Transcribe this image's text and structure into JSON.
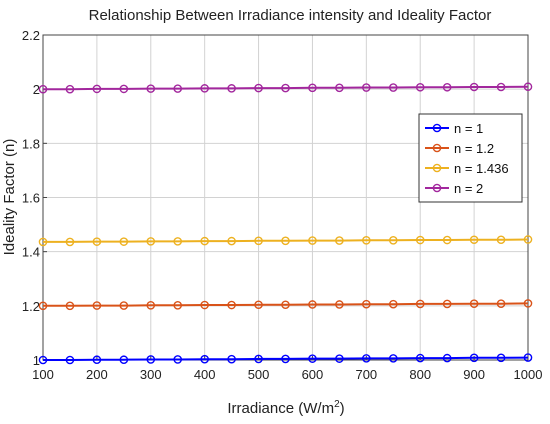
{
  "chart_data": {
    "type": "line",
    "title": "Relationship Between Irradiance intensity and Ideality Factor",
    "xlabel": "Irradiance (W/m",
    "xlabel_sup": "2",
    "xlabel_close": ")",
    "ylabel": "Ideality Factor (n)",
    "xlim": [
      100,
      1000
    ],
    "ylim": [
      1.0,
      2.2
    ],
    "grid": true,
    "legend_position": "right",
    "x_ticks": [
      "100",
      "200",
      "300",
      "400",
      "500",
      "600",
      "700",
      "800",
      "900",
      "1000"
    ],
    "y_ticks": [
      "1",
      "1.2",
      "1.4",
      "1.6",
      "1.8",
      "2",
      "2.2"
    ],
    "x": [
      100,
      150,
      200,
      250,
      300,
      350,
      400,
      450,
      500,
      550,
      600,
      650,
      700,
      750,
      800,
      850,
      900,
      950,
      1000
    ],
    "series": [
      {
        "name": "n = 1",
        "color": "#0000ff",
        "values": [
          1.0,
          1.0,
          1.001,
          1.001,
          1.002,
          1.002,
          1.003,
          1.003,
          1.004,
          1.004,
          1.005,
          1.005,
          1.006,
          1.006,
          1.007,
          1.007,
          1.008,
          1.008,
          1.009
        ]
      },
      {
        "name": "n = 1.2",
        "color": "#d95319",
        "values": [
          1.2,
          1.2,
          1.201,
          1.201,
          1.202,
          1.202,
          1.203,
          1.203,
          1.204,
          1.204,
          1.205,
          1.205,
          1.206,
          1.206,
          1.207,
          1.207,
          1.208,
          1.208,
          1.209
        ]
      },
      {
        "name": "n = 1.436",
        "color": "#edb120",
        "values": [
          1.436,
          1.436,
          1.437,
          1.437,
          1.438,
          1.438,
          1.439,
          1.439,
          1.44,
          1.44,
          1.441,
          1.441,
          1.442,
          1.442,
          1.443,
          1.443,
          1.444,
          1.444,
          1.445
        ]
      },
      {
        "name": "n = 2",
        "color": "#a2279d",
        "values": [
          2.0,
          2.0,
          2.001,
          2.001,
          2.002,
          2.002,
          2.003,
          2.003,
          2.004,
          2.004,
          2.005,
          2.005,
          2.006,
          2.006,
          2.007,
          2.007,
          2.008,
          2.008,
          2.009
        ]
      }
    ]
  }
}
